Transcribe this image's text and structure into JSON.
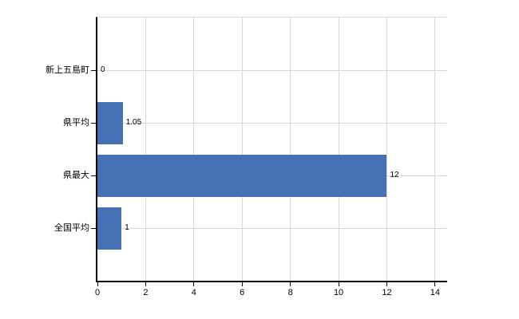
{
  "chart_data": {
    "type": "bar",
    "orientation": "horizontal",
    "title": "",
    "categories": [
      "新上五島町",
      "県平均",
      "県最大",
      "全国平均"
    ],
    "values": [
      0,
      1.05,
      12,
      1
    ],
    "value_labels": [
      "0",
      "1.05",
      "12",
      "1"
    ],
    "x_tick_labels": [
      "0",
      "2",
      "4",
      "6",
      "8",
      "10",
      "12",
      "14"
    ],
    "x_tick_values": [
      0,
      2,
      4,
      6,
      8,
      10,
      12,
      14
    ],
    "xlim": [
      0,
      14.5
    ],
    "grid": true,
    "legend": "none",
    "colors": {
      "bar": "#4472b4",
      "gridline": "#d9d9d9",
      "axis": "#000000",
      "text": "#000000",
      "background": "#ffffff"
    }
  }
}
